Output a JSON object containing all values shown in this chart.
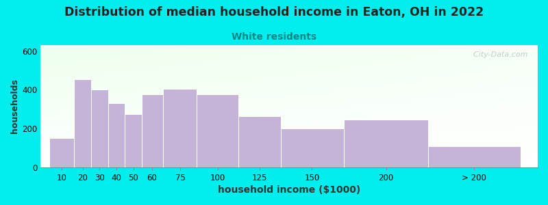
{
  "title": "Distribution of median household income in Eaton, OH in 2022",
  "subtitle": "White residents",
  "xlabel": "household income ($1000)",
  "ylabel": "households",
  "background_color": "#00EEEE",
  "bar_color": "#C4B4D8",
  "bar_edge_color": "#ffffff",
  "title_fontsize": 12.5,
  "title_color": "#222222",
  "subtitle_fontsize": 10,
  "subtitle_color": "#008888",
  "xlabel_fontsize": 10,
  "ylabel_fontsize": 9,
  "tick_fontsize": 8.5,
  "categories": [
    "10",
    "20",
    "30",
    "40",
    "50",
    "60",
    "75",
    "100",
    "125",
    "150",
    "200",
    "> 200"
  ],
  "bin_edges": [
    0,
    15,
    25,
    35,
    45,
    55,
    67.5,
    87.5,
    112.5,
    137.5,
    175,
    225,
    280
  ],
  "values": [
    150,
    455,
    400,
    330,
    275,
    375,
    405,
    375,
    265,
    200,
    245,
    110
  ],
  "ylim": [
    0,
    630
  ],
  "yticks": [
    0,
    200,
    400,
    600
  ],
  "watermark": "  City-Data.com"
}
